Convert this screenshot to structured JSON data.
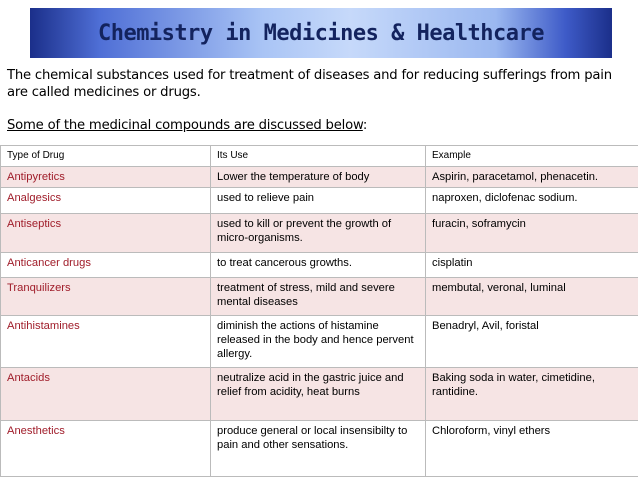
{
  "header": {
    "title": "Chemistry in Medicines & Healthcare"
  },
  "intro": "The chemical substances used for treatment of diseases and for reducing sufferings from pain are called medicines or drugs.",
  "subheading": {
    "underlined": "Some of the medicinal compounds are discussed below",
    "tail": ":"
  },
  "table": {
    "columns": [
      "Type of Drug",
      "Its Use",
      "Example"
    ],
    "rows": [
      [
        "Antipyretics",
        "Lower the temperature of body",
        "Aspirin, paracetamol, phenacetin."
      ],
      [
        "Analgesics",
        "used to relieve pain",
        "naproxen, diclofenac sodium."
      ],
      [
        "Antiseptics",
        "used to kill or prevent the growth of micro-organisms.",
        "furacin, soframycin"
      ],
      [
        "Anticancer drugs",
        "to treat cancerous growths.",
        "cisplatin"
      ],
      [
        "Tranquilizers",
        "treatment of stress, mild and severe mental diseases",
        "membutal, veronal, luminal"
      ],
      [
        "Antihistamines",
        "diminish the actions of histamine released in the body and hence pervent allergy.",
        "Benadryl, Avil, foristal"
      ],
      [
        "Antacids",
        "neutralize acid in the gastric juice and relief from acidity, heat burns",
        "Baking soda in water, cimetidine, rantidine."
      ],
      [
        "Anesthetics",
        "produce general or local insensibilty to pain and other sensations.",
        "Chloroform,  vinyl ethers"
      ]
    ]
  }
}
